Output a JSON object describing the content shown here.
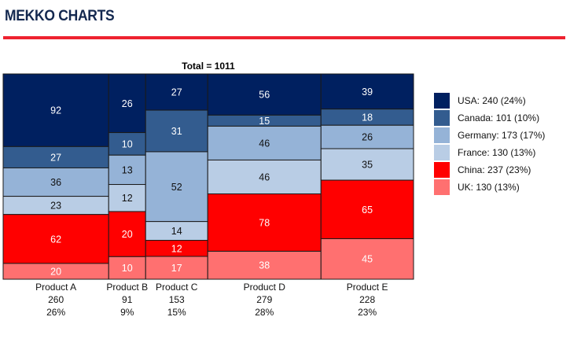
{
  "header": {
    "title": "MEKKO CHARTS"
  },
  "chart_data": {
    "type": "mekko",
    "title": "Total = 1011",
    "total": 1011,
    "categories": [
      "Product A",
      "Product B",
      "Product C",
      "Product D",
      "Product E"
    ],
    "category_totals": [
      260,
      91,
      153,
      279,
      228
    ],
    "category_percents": [
      "26%",
      "9%",
      "15%",
      "28%",
      "23%"
    ],
    "series": [
      {
        "name": "USA",
        "color": "#002060",
        "label_color": "#ffffff",
        "values": [
          92,
          26,
          27,
          56,
          39
        ],
        "legend": "USA: 240 (24%)"
      },
      {
        "name": "Canada",
        "color": "#335c8f",
        "label_color": "#ffffff",
        "values": [
          27,
          10,
          31,
          15,
          18
        ],
        "legend": "Canada: 101 (10%)"
      },
      {
        "name": "Germany",
        "color": "#95b3d7",
        "label_color": "#111111",
        "values": [
          36,
          13,
          52,
          46,
          26
        ],
        "legend": "Germany: 173 (17%)"
      },
      {
        "name": "France",
        "color": "#b9cde5",
        "label_color": "#111111",
        "values": [
          23,
          12,
          14,
          46,
          35
        ],
        "legend": "France: 130 (13%)"
      },
      {
        "name": "China",
        "color": "#ff0000",
        "label_color": "#ffffff",
        "values": [
          62,
          20,
          12,
          78,
          65
        ],
        "legend": "China: 237 (23%)"
      },
      {
        "name": "UK",
        "color": "#ff7070",
        "label_color": "#ffffff",
        "values": [
          20,
          10,
          17,
          38,
          45
        ],
        "legend": "UK: 130 (13%)"
      }
    ],
    "legend_position": "right",
    "grid": false
  }
}
